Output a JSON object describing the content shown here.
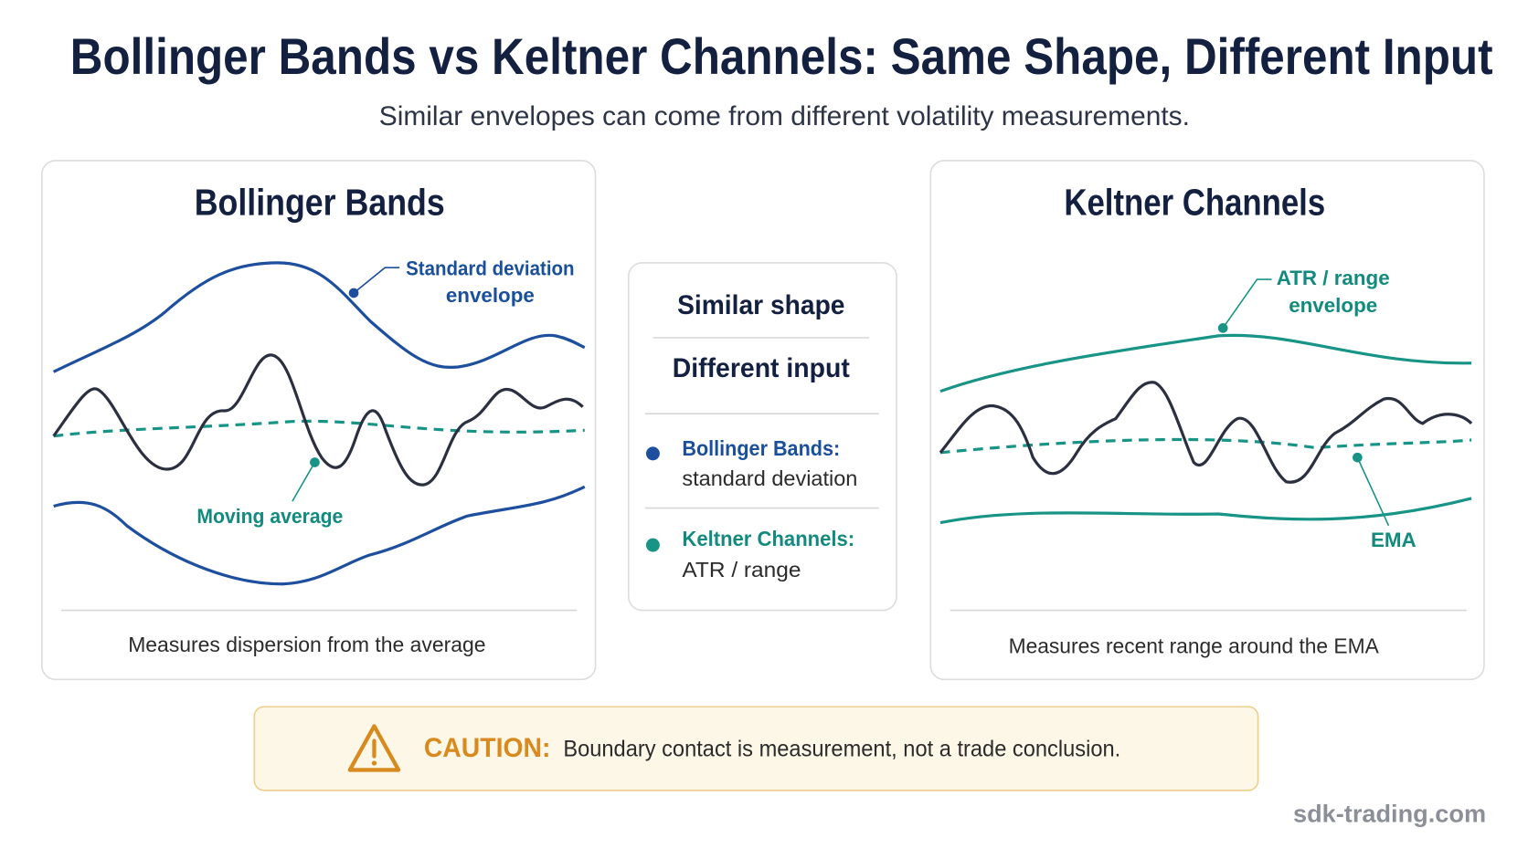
{
  "header": {
    "title": "Bollinger Bands vs Keltner Channels: Same Shape, Different Input",
    "subtitle": "Similar envelopes can come from different volatility measurements."
  },
  "panels": [
    {
      "title": "Bollinger Bands",
      "envelope_label": [
        "Standard deviation",
        "envelope"
      ],
      "center_label": "Moving average",
      "footer": "Measures dispersion from the average"
    },
    {
      "title": "Keltner Channels",
      "envelope_label": [
        "ATR / range",
        "envelope"
      ],
      "center_label": "EMA",
      "footer": "Measures recent range around the EMA"
    }
  ],
  "comparison": {
    "lines": [
      "Similar shape",
      "Different input"
    ],
    "items": [
      {
        "name": "Bollinger Bands:",
        "detail": "standard deviation"
      },
      {
        "name": "Keltner Channels:",
        "detail": "ATR / range"
      }
    ]
  },
  "caution": {
    "label": "CAUTION:",
    "text": "Boundary contact is measurement, not a trade conclusion."
  },
  "footer": {
    "watermark": "sdk-trading.com"
  }
}
